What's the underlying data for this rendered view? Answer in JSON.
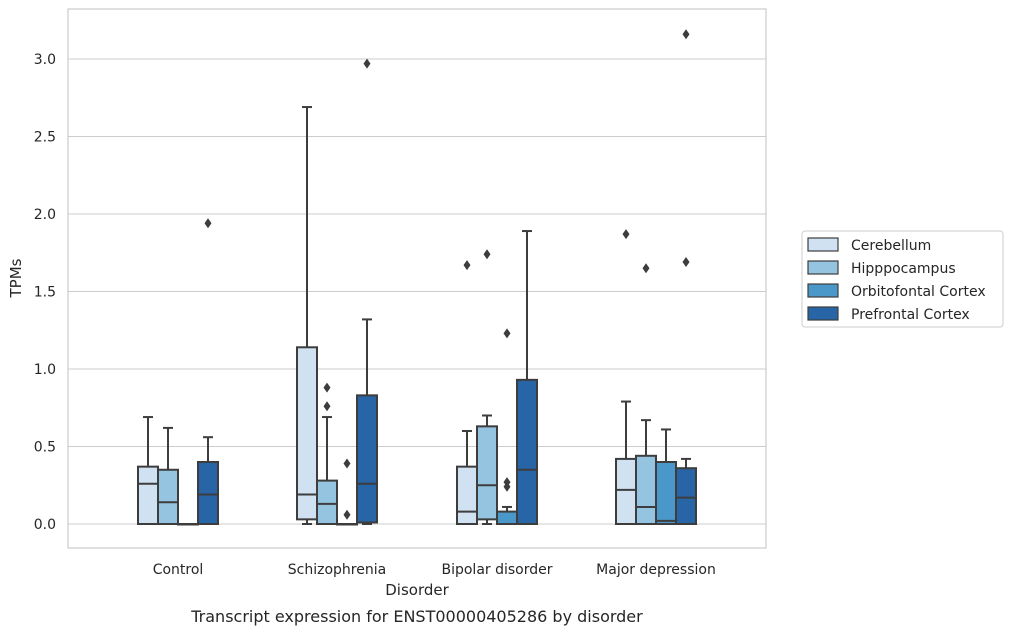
{
  "chart_data": {
    "type": "box",
    "caption": "Transcript expression for ENST00000405286 by disorder",
    "xlabel": "Disorder",
    "ylabel": "TPMs",
    "ylim": [
      -0.155,
      3.3
    ],
    "yticks": [
      0.0,
      0.5,
      1.0,
      1.5,
      2.0,
      2.5,
      3.0
    ],
    "ytick_labels": [
      "0.0",
      "0.5",
      "1.0",
      "1.5",
      "2.0",
      "2.5",
      "3.0"
    ],
    "grid": "horizontal",
    "legend_position": "right",
    "categories": [
      "Control",
      "Schizophrenia",
      "Bipolar disorder",
      "Major depression"
    ],
    "series": [
      {
        "name": "Cerebellum",
        "color": "#d0e1f2",
        "boxes": [
          {
            "q1": 0.0,
            "median": 0.26,
            "q3": 0.37,
            "whisker_low": 0.0,
            "whisker_high": 0.69,
            "outliers": []
          },
          {
            "q1": 0.03,
            "median": 0.19,
            "q3": 1.14,
            "whisker_low": 0.0,
            "whisker_high": 2.69,
            "outliers": []
          },
          {
            "q1": 0.0,
            "median": 0.08,
            "q3": 0.37,
            "whisker_low": 0.0,
            "whisker_high": 0.6,
            "outliers": [
              1.67
            ]
          },
          {
            "q1": 0.0,
            "median": 0.22,
            "q3": 0.42,
            "whisker_low": 0.0,
            "whisker_high": 0.79,
            "outliers": [
              1.87
            ]
          }
        ]
      },
      {
        "name": "Hipppocampus",
        "color": "#94c4df",
        "boxes": [
          {
            "q1": 0.0,
            "median": 0.14,
            "q3": 0.35,
            "whisker_low": 0.0,
            "whisker_high": 0.62,
            "outliers": []
          },
          {
            "q1": 0.0,
            "median": 0.13,
            "q3": 0.28,
            "whisker_low": 0.0,
            "whisker_high": 0.69,
            "outliers": [
              0.76,
              0.88
            ]
          },
          {
            "q1": 0.03,
            "median": 0.25,
            "q3": 0.63,
            "whisker_low": 0.0,
            "whisker_high": 0.7,
            "outliers": [
              1.74
            ]
          },
          {
            "q1": 0.0,
            "median": 0.11,
            "q3": 0.44,
            "whisker_low": 0.0,
            "whisker_high": 0.67,
            "outliers": [
              1.65
            ]
          }
        ]
      },
      {
        "name": "Orbitofontal Cortex",
        "color": "#4a98c9",
        "boxes": [
          {
            "q1": 0.0,
            "median": 0.0,
            "q3": 0.0,
            "whisker_low": 0.0,
            "whisker_high": 0.0,
            "outliers": []
          },
          {
            "q1": 0.0,
            "median": 0.0,
            "q3": 0.0,
            "whisker_low": 0.0,
            "whisker_high": 0.0,
            "outliers": [
              0.06,
              0.39
            ]
          },
          {
            "q1": 0.0,
            "median": 0.0,
            "q3": 0.08,
            "whisker_low": 0.0,
            "whisker_high": 0.11,
            "outliers": [
              0.24,
              0.27,
              1.23
            ]
          },
          {
            "q1": 0.0,
            "median": 0.02,
            "q3": 0.4,
            "whisker_low": 0.0,
            "whisker_high": 0.61,
            "outliers": []
          }
        ]
      },
      {
        "name": "Prefrontal Cortex",
        "color": "#2765a6",
        "boxes": [
          {
            "q1": 0.0,
            "median": 0.19,
            "q3": 0.4,
            "whisker_low": 0.0,
            "whisker_high": 0.56,
            "outliers": [
              1.94
            ]
          },
          {
            "q1": 0.01,
            "median": 0.26,
            "q3": 0.83,
            "whisker_low": 0.0,
            "whisker_high": 1.32,
            "outliers": [
              2.97
            ]
          },
          {
            "q1": 0.0,
            "median": 0.35,
            "q3": 0.93,
            "whisker_low": 0.0,
            "whisker_high": 1.89,
            "outliers": []
          },
          {
            "q1": 0.0,
            "median": 0.17,
            "q3": 0.36,
            "whisker_low": 0.0,
            "whisker_high": 0.42,
            "outliers": [
              1.69,
              3.16
            ]
          }
        ]
      }
    ]
  }
}
